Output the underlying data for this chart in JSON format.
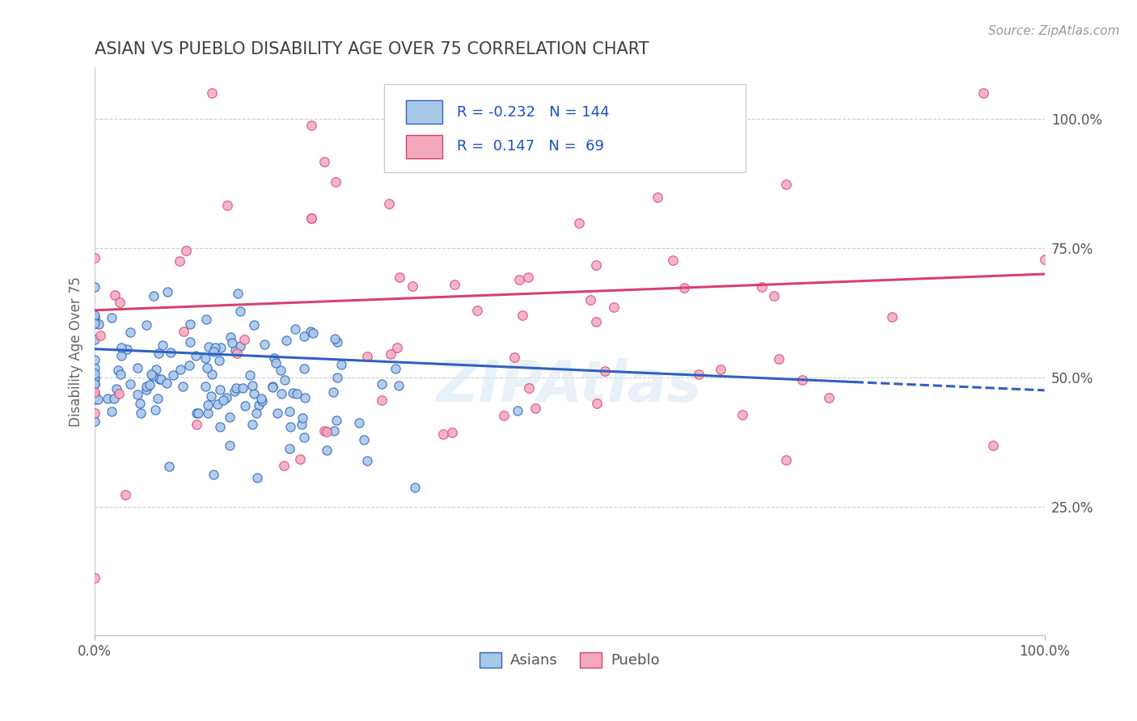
{
  "title": "ASIAN VS PUEBLO DISABILITY AGE OVER 75 CORRELATION CHART",
  "source_text": "Source: ZipAtlas.com",
  "ylabel": "Disability Age Over 75",
  "xlim": [
    0.0,
    1.0
  ],
  "ylim": [
    0.0,
    1.1
  ],
  "asian_R": -0.232,
  "asian_N": 144,
  "pueblo_R": 0.147,
  "pueblo_N": 69,
  "asian_color": "#a8c8e8",
  "pueblo_color": "#f4a8bc",
  "asian_trend_color": "#3060c0",
  "pueblo_trend_color": "#d84070",
  "watermark": "ZIPAtlas",
  "legend_asian_label": "Asians",
  "legend_pueblo_label": "Pueblo",
  "background_color": "#ffffff",
  "grid_color": "#cccccc",
  "title_color": "#404040",
  "title_fontsize": 15,
  "asian_trend_start_y": 0.555,
  "asian_trend_end_y": 0.475,
  "pueblo_trend_start_y": 0.63,
  "pueblo_trend_end_y": 0.7
}
